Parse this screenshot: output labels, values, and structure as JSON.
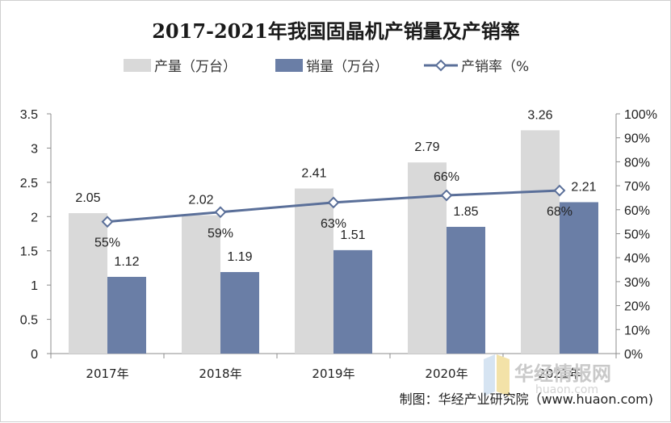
{
  "chart_data": {
    "type": "bar",
    "title": "2017-2021年我国固晶机产销量及产销率",
    "categories": [
      "2017年",
      "2018年",
      "2019年",
      "2020年",
      "2021年"
    ],
    "series": [
      {
        "name": "产量（万台）",
        "kind": "bar",
        "axis": "left",
        "values": [
          2.05,
          2.02,
          2.41,
          2.79,
          3.26
        ],
        "labels": [
          "2.05",
          "2.02",
          "2.41",
          "2.79",
          "3.26"
        ],
        "color": "#d9d9d9"
      },
      {
        "name": "销量（万台）",
        "kind": "bar",
        "axis": "left",
        "values": [
          1.12,
          1.19,
          1.51,
          1.85,
          2.21
        ],
        "labels": [
          "1.12",
          "1.19",
          "1.51",
          "1.85",
          "2.21"
        ],
        "color": "#6a7ea6"
      },
      {
        "name": "产销率（%",
        "kind": "line",
        "axis": "right",
        "values": [
          55,
          59,
          63,
          66,
          68
        ],
        "labels": [
          "55%",
          "59%",
          "63%",
          "66%",
          "68%"
        ],
        "color": "#5a6f99"
      }
    ],
    "y_left": {
      "min": 0,
      "max": 3.5,
      "ticks": [
        "0",
        "0.5",
        "1",
        "1.5",
        "2",
        "2.5",
        "3",
        "3.5"
      ]
    },
    "y_right": {
      "min": 0,
      "max": 100,
      "ticks": [
        "0%",
        "10%",
        "20%",
        "30%",
        "40%",
        "50%",
        "60%",
        "70%",
        "80%",
        "90%",
        "100%"
      ]
    },
    "legend_position": "top",
    "grid": false
  },
  "source": "制图：华经产业研究院（www.huaon.com)",
  "watermark": {
    "text": "华经情报网",
    "url": "huaon.com"
  }
}
